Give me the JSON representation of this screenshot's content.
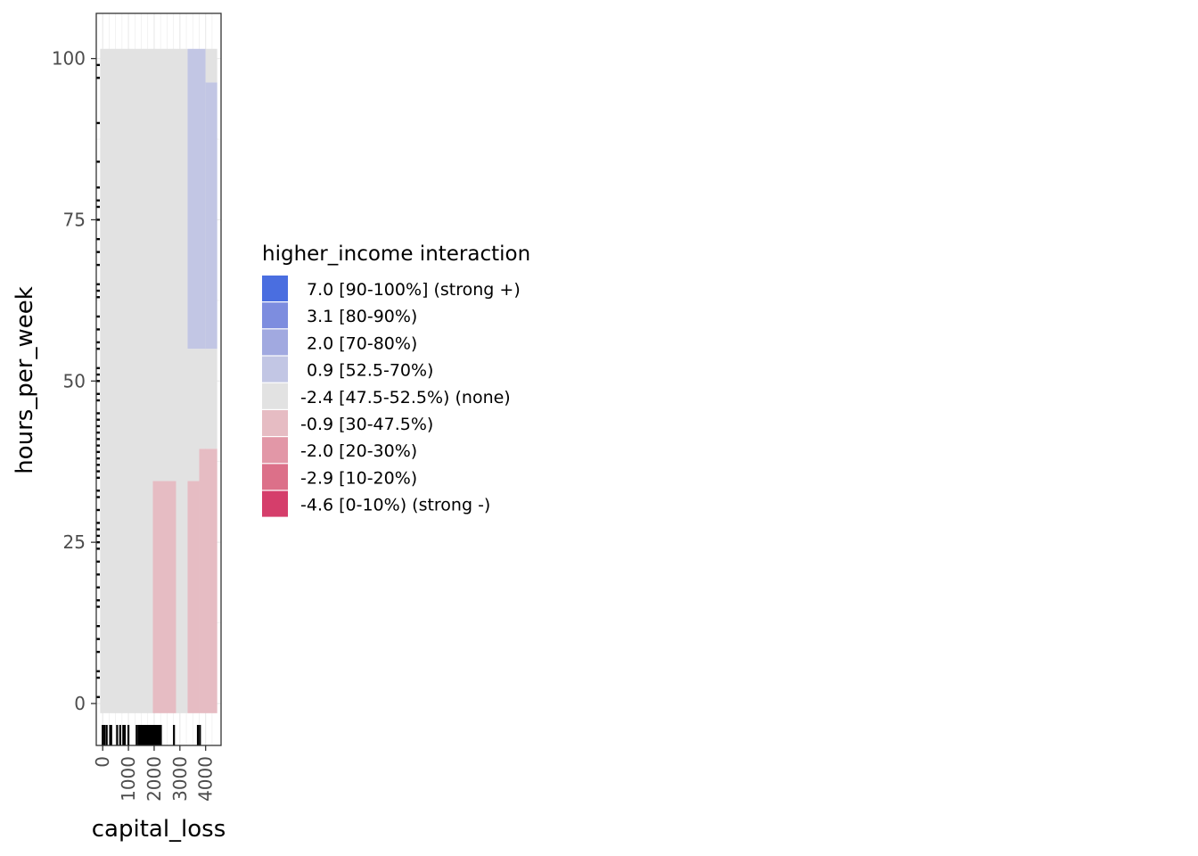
{
  "chart_data": {
    "type": "heatmap",
    "xlabel": "capital_loss",
    "ylabel": "hours_per_week",
    "xlim": [
      -250,
      4600
    ],
    "ylim": [
      -6.5,
      107
    ],
    "x_ticks": [
      {
        "value": 0,
        "label": "0"
      },
      {
        "value": 1000,
        "label": "1000"
      },
      {
        "value": 2000,
        "label": "2000"
      },
      {
        "value": 3000,
        "label": "3000"
      },
      {
        "value": 4000,
        "label": "4000"
      }
    ],
    "y_ticks": [
      {
        "value": 0,
        "label": "0"
      },
      {
        "value": 25,
        "label": "25"
      },
      {
        "value": 50,
        "label": "50"
      },
      {
        "value": 75,
        "label": "75"
      },
      {
        "value": 100,
        "label": "100"
      }
    ],
    "tiles": [
      {
        "x0": -100,
        "x1": 1950,
        "y0": -1.5,
        "y1": 101.5,
        "level": 4
      },
      {
        "x0": 1950,
        "x1": 2850,
        "y0": -1.5,
        "y1": 34.5,
        "level": 3
      },
      {
        "x0": 1950,
        "x1": 2850,
        "y0": 34.5,
        "y1": 101.5,
        "level": 4
      },
      {
        "x0": 2850,
        "x1": 3300,
        "y0": -1.5,
        "y1": 101.5,
        "level": 4
      },
      {
        "x0": 3300,
        "x1": 3750,
        "y0": -1.5,
        "y1": 34.5,
        "level": 3
      },
      {
        "x0": 3750,
        "x1": 4450,
        "y0": -1.5,
        "y1": 39.5,
        "level": 3
      },
      {
        "x0": 3300,
        "x1": 3750,
        "y0": 34.5,
        "y1": 55,
        "level": 4
      },
      {
        "x0": 3750,
        "x1": 4450,
        "y0": 39.5,
        "y1": 55,
        "level": 4
      },
      {
        "x0": 3300,
        "x1": 4000,
        "y0": 55,
        "y1": 101.5,
        "level": 5
      },
      {
        "x0": 4000,
        "x1": 4450,
        "y0": 55,
        "y1": 96.3,
        "level": 5
      },
      {
        "x0": 4000,
        "x1": 4450,
        "y0": 96.3,
        "y1": 101.5,
        "level": 4
      }
    ],
    "rug_x": [
      0,
      70,
      155,
      290,
      330,
      560,
      680,
      800,
      860,
      1000,
      1320,
      1400,
      1450,
      1500,
      1530,
      1560,
      1600,
      1620,
      1650,
      1680,
      1700,
      1720,
      1740,
      1760,
      1780,
      1800,
      1820,
      1850,
      1870,
      1900,
      1930,
      1960,
      1980,
      2000,
      2020,
      2040,
      2060,
      2080,
      2100,
      2130,
      2160,
      2180,
      2200,
      2240,
      2260,
      2770,
      3700,
      3780
    ],
    "rug_y": [
      1,
      4,
      5,
      8,
      10,
      12,
      15,
      16,
      18,
      20,
      22,
      24,
      25,
      26,
      27,
      28,
      30,
      32,
      33,
      35,
      36,
      37,
      38,
      39,
      40,
      41,
      42,
      43,
      44,
      45,
      47,
      48,
      50,
      51,
      52,
      55,
      56,
      58,
      60,
      63,
      64,
      65,
      68,
      70,
      72,
      75,
      77,
      78,
      80,
      84,
      90,
      97,
      99
    ],
    "legend": {
      "title": "higher_income interaction",
      "placement": "right",
      "items": [
        {
          "label": "7.0 [90-100%] (strong +)",
          "color": "#4a6ee0"
        },
        {
          "label": "3.1 [80-90%)",
          "color": "#7d8ddf"
        },
        {
          "label": "2.0 [70-80%)",
          "color": "#a1a9e0"
        },
        {
          "label": "0.9 [52.5-70%)",
          "color": "#c2c6e4"
        },
        {
          "label": "-2.4 [47.5-52.5%) (none)",
          "color": "#e2e2e2"
        },
        {
          "label": "-0.9 [30-47.5%)",
          "color": "#e6bcc3"
        },
        {
          "label": "-2.0 [20-30%)",
          "color": "#e297a7"
        },
        {
          "label": "-2.9 [10-20%)",
          "color": "#dc7089"
        },
        {
          "label": "-4.6 [0-10%) (strong -)",
          "color": "#d53e6b"
        }
      ]
    },
    "grid": true,
    "panel_border": true
  }
}
